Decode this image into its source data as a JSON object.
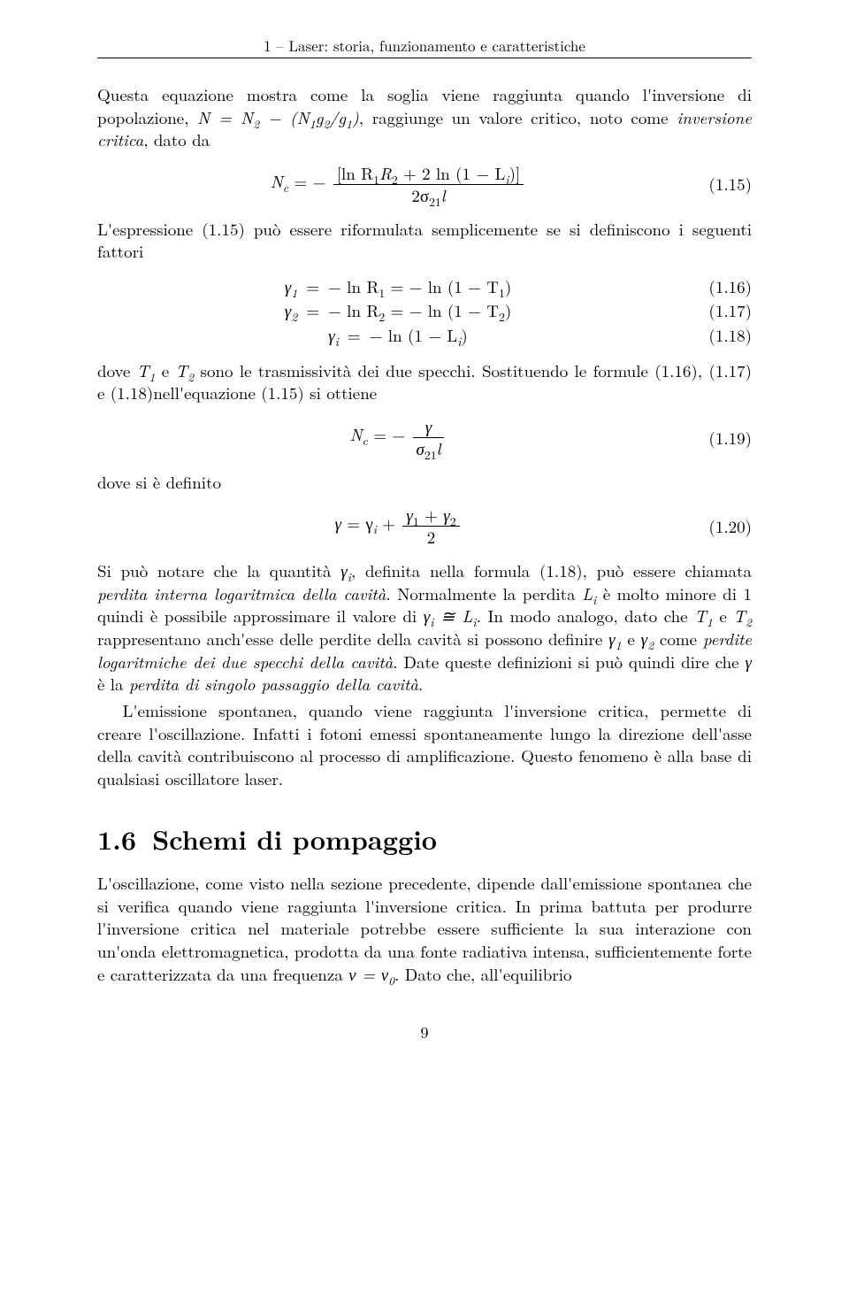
{
  "runningHead": "1 – Laser: storia, funzionamento e caratteristiche",
  "para1_a": "Questa equazione mostra come la soglia viene raggiunta quando l'inversione di popolazione, ",
  "para1_b": ", raggiunge un valore critico, noto come ",
  "para1_c": "inversione critica",
  "para1_d": ", dato da",
  "eq15_num": "(1.15)",
  "para2_a": "L'espressione (1.15) può essere riformulata semplicemente se si definiscono i seguenti fattori",
  "eq16_num": "(1.16)",
  "eq17_num": "(1.17)",
  "eq18_num": "(1.18)",
  "para3_a": "dove ",
  "para3_b": " e ",
  "para3_c": " sono le trasmissività dei due specchi. Sostituendo le formule (1.16), (1.17) e (1.18)nell'equazione (1.15) si ottiene",
  "eq19_num": "(1.19)",
  "para4": "dove si è definito",
  "eq20_num": "(1.20)",
  "para5_a": "Si può notare che la quantità ",
  "para5_b": ", definita nella formula (1.18), può essere chiamata ",
  "para5_c": "perdita interna logaritmica della cavità",
  "para5_d": ". Normalmente la perdita ",
  "para5_e": " è molto minore di 1 quindi è possibile approssimare il valore di ",
  "para5_f": ". In modo analogo, dato che ",
  "para5_g": " e ",
  "para5_h": " rappresentano anch'esse delle perdite della cavità si possono definire ",
  "para5_i": " e ",
  "para5_j": " come ",
  "para5_k": "perdite logaritmiche dei due specchi della cavità",
  "para5_l": ". Date queste definizioni si può quindi dire che ",
  "para5_m": " è la ",
  "para5_n": "perdita di singolo passaggio della cavità",
  "para5_o": ".",
  "para6": "L'emissione spontanea, quando viene raggiunta l'inversione critica, permette di creare l'oscillazione. Infatti i fotoni emessi spontaneamente lungo la direzione dell'asse della cavità contribuiscono al processo di amplificazione. Questo fenomeno è alla base di qualsiasi oscillatore laser.",
  "section_num": "1.6",
  "section_title": "Schemi di pompaggio",
  "para7_a": "L'oscillazione, come visto nella sezione precedente, dipende dall'emissione spontanea che si verifica quando viene raggiunta l'inversione critica. In prima battuta per produrre l'inversione critica nel materiale potrebbe essere sufficiente la sua interazione con un'onda elettromagnetica, prodotta da una fonte radiativa intensa, sufficientemente forte e caratterizzata da una frequenza ",
  "para7_b": ". Dato che, all'equilibrio",
  "pageNumber": "9",
  "math": {
    "N_eq_N2": "N = N",
    "sub2": "2",
    "minus_open": " − (N",
    "sub1": "1",
    "g2g1_close": ")",
    "Nc_eq": "N",
    "c": "c",
    "eq_minus": " = −",
    "ln_R1R2": "[ln R",
    "plus_2ln": " + 2 ln (1 − L",
    "i": "i",
    "close_br": ")]",
    "two_sigma": "2σ",
    "sub21": "21",
    "l": "l",
    "gamma": "γ",
    "eqs": " = ",
    "minus_ln_R": "− ln R",
    "eq_minus_ln": " = − ln (1 − T",
    "close_p": ")",
    "minus_ln_1L": "− ln (1 − L",
    "gamma_eq_gammai_plus": " = γ",
    "plus": " + ",
    "over2": "2",
    "gamma1": "γ",
    "gamma2": "γ",
    "Li": "L",
    "T": "T",
    "g": "g",
    "slash": "/",
    "approx": " ≅ ",
    "nu_eq_nu0": "ν = ν",
    "sub0": "0",
    "R": "R"
  }
}
